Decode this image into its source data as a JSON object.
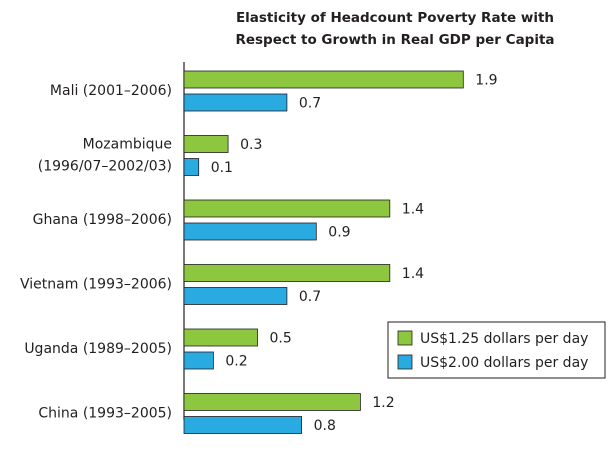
{
  "chart_data": {
    "type": "bar",
    "orientation": "horizontal",
    "title": [
      "Elasticity of Headcount Poverty Rate with",
      "Respect to Growth in Real GDP per Capita"
    ],
    "categories": [
      [
        "Mali (2001–2006)"
      ],
      [
        "Mozambique",
        "(1996/07–2002/03)"
      ],
      [
        "Ghana (1998–2006)"
      ],
      [
        "Vietnam (1993–2006)"
      ],
      [
        "Uganda (1989–2005)"
      ],
      [
        "China (1993–2005)"
      ]
    ],
    "series": [
      {
        "name": "US$1.25 dollars per day",
        "color": "#8dc63f",
        "values": [
          1.9,
          0.3,
          1.4,
          1.4,
          0.5,
          1.2
        ]
      },
      {
        "name": "US$2.00 dollars per day",
        "color": "#29abe2",
        "values": [
          0.7,
          0.1,
          0.9,
          0.7,
          0.2,
          0.8
        ]
      }
    ],
    "legend": "lower right"
  }
}
